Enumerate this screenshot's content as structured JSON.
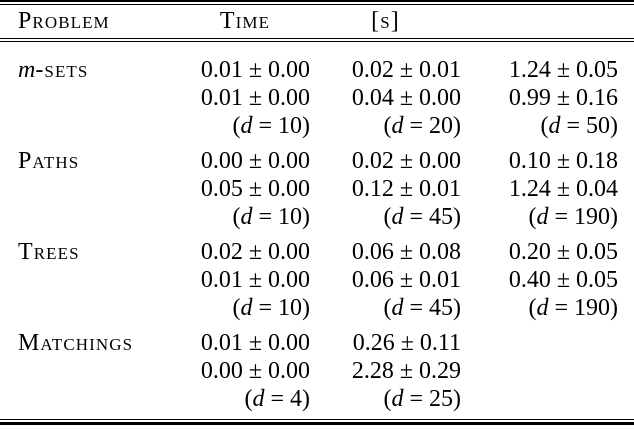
{
  "table": {
    "header": {
      "problem": "Problem",
      "time": "Time",
      "unit": "[s]"
    },
    "groups": [
      {
        "name_italic": "m",
        "name": "-sets",
        "values": [
          [
            "0.01 ± 0.00",
            "0.02 ± 0.01",
            "1.24 ± 0.05"
          ],
          [
            "0.01 ± 0.00",
            "0.04 ± 0.00",
            "0.99 ± 0.16"
          ]
        ],
        "d": [
          {
            "pre": "(",
            "var": "d",
            "post": " = 10)"
          },
          {
            "pre": "(",
            "var": "d",
            "post": " = 20)"
          },
          {
            "pre": "(",
            "var": "d",
            "post": " = 50)"
          }
        ]
      },
      {
        "name_italic": "",
        "name": "Paths",
        "values": [
          [
            "0.00 ± 0.00",
            "0.02 ± 0.00",
            "0.10 ± 0.18"
          ],
          [
            "0.05 ± 0.00",
            "0.12 ± 0.01",
            "1.24 ± 0.04"
          ]
        ],
        "d": [
          {
            "pre": "(",
            "var": "d",
            "post": " = 10)"
          },
          {
            "pre": "(",
            "var": "d",
            "post": " = 45)"
          },
          {
            "pre": "(",
            "var": "d",
            "post": " = 190)"
          }
        ]
      },
      {
        "name_italic": "",
        "name": "Trees",
        "values": [
          [
            "0.02 ± 0.00",
            "0.06 ± 0.08",
            "0.20 ± 0.05"
          ],
          [
            "0.01 ± 0.00",
            "0.06 ± 0.01",
            "0.40 ± 0.05"
          ]
        ],
        "d": [
          {
            "pre": "(",
            "var": "d",
            "post": " = 10)"
          },
          {
            "pre": "(",
            "var": "d",
            "post": " = 45)"
          },
          {
            "pre": "(",
            "var": "d",
            "post": " = 190)"
          }
        ]
      },
      {
        "name_italic": "",
        "name": "Matchings",
        "values": [
          [
            "0.01 ± 0.00",
            "0.26 ± 0.11",
            ""
          ],
          [
            "0.00 ± 0.00",
            "2.28 ± 0.29",
            ""
          ]
        ],
        "d": [
          {
            "pre": "(",
            "var": "d",
            "post": " = 4)"
          },
          {
            "pre": "(",
            "var": "d",
            "post": " = 25)"
          },
          {
            "pre": "",
            "var": "",
            "post": ""
          }
        ]
      }
    ],
    "colors": {
      "text": "#000000",
      "background": "#ffffff",
      "rule": "#000000"
    }
  }
}
